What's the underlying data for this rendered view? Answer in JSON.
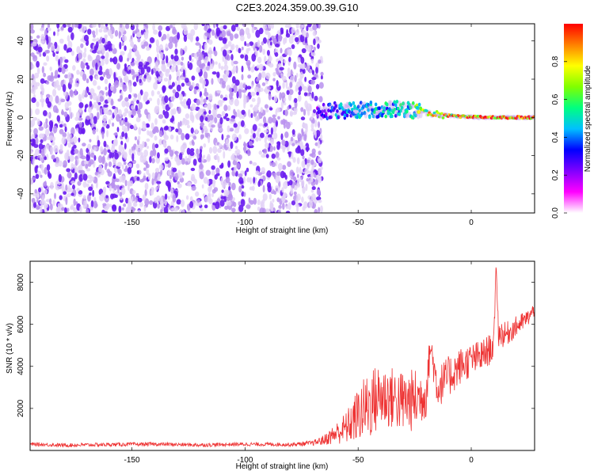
{
  "title": "C2E3.2024.359.00.39.G10",
  "chart_data": [
    {
      "type": "heatmap",
      "title": "C2E3.2024.359.00.39.G10",
      "xlabel": "Height of straight line (km)",
      "ylabel": "Frequency (Hz)",
      "xlim": [
        -195,
        28
      ],
      "ylim": [
        -50,
        49
      ],
      "xticks": [
        -150,
        -100,
        -50,
        0
      ],
      "yticks": [
        -40,
        -20,
        0,
        20,
        40
      ],
      "xtick_labels": [
        "-150",
        "-100",
        "-50",
        "0"
      ],
      "ytick_labels": [
        "-40",
        "-20",
        "0",
        "20",
        "40"
      ],
      "colorbar": {
        "label": "Normalized spectral amplitude",
        "range": [
          0,
          1
        ],
        "ticks": [
          0.0,
          0.2,
          0.4,
          0.6,
          0.8
        ],
        "tick_labels": [
          "0.0",
          "0.2",
          "0.4",
          "0.6",
          "0.8"
        ],
        "colormap": [
          "#ffffff",
          "#ff00ff",
          "#8000ff",
          "#0000ff",
          "#00c0ff",
          "#00ff80",
          "#80ff00",
          "#ffff00",
          "#ff8000",
          "#ff0000"
        ]
      },
      "noise_region": {
        "x_range": [
          -195,
          -68
        ],
        "frequency_range": [
          -50,
          49
        ],
        "amplitude": 0.1
      },
      "signal_track": [
        {
          "x": -68,
          "frequency": 3.0,
          "amplitude": 0.25
        },
        {
          "x": -60,
          "frequency": 3.5,
          "amplitude": 0.4
        },
        {
          "x": -50,
          "frequency": 4.0,
          "amplitude": 0.45
        },
        {
          "x": -40,
          "frequency": 4.0,
          "amplitude": 0.5
        },
        {
          "x": -30,
          "frequency": 4.5,
          "amplitude": 0.5
        },
        {
          "x": -22,
          "frequency": 3.0,
          "amplitude": 0.7
        },
        {
          "x": -15,
          "frequency": 1.5,
          "amplitude": 0.85
        },
        {
          "x": -5,
          "frequency": 0.5,
          "amplitude": 0.9
        },
        {
          "x": 5,
          "frequency": 0.0,
          "amplitude": 0.95
        },
        {
          "x": 15,
          "frequency": 0.0,
          "amplitude": 0.95
        },
        {
          "x": 28,
          "frequency": 0.0,
          "amplitude": 0.95
        }
      ]
    },
    {
      "type": "line",
      "xlabel": "Height of straight line (km)",
      "ylabel": "SNR (10 * v/v)",
      "xlim": [
        -195,
        28
      ],
      "ylim": [
        0,
        9000
      ],
      "xticks": [
        -150,
        -100,
        -50,
        0
      ],
      "yticks": [
        2000,
        4000,
        6000,
        8000
      ],
      "xtick_labels": [
        "-150",
        "-100",
        "-50",
        "0"
      ],
      "ytick_labels": [
        "2000",
        "4000",
        "6000",
        "8000"
      ],
      "series": [
        {
          "name": "SNR",
          "color": "#ee3333",
          "x": [
            -195,
            -180,
            -160,
            -140,
            -120,
            -100,
            -80,
            -70,
            -65,
            -60,
            -55,
            -50,
            -45,
            -40,
            -35,
            -30,
            -25,
            -20,
            -18,
            -15,
            -10,
            -5,
            0,
            5,
            10,
            11,
            12,
            15,
            20,
            25,
            28
          ],
          "values": [
            300,
            250,
            280,
            300,
            260,
            300,
            280,
            350,
            500,
            800,
            1100,
            1700,
            2200,
            2600,
            2500,
            2300,
            2400,
            2700,
            5000,
            3000,
            3500,
            4000,
            4300,
            4500,
            5000,
            9000,
            5600,
            5500,
            5900,
            6300,
            6700
          ],
          "noise": [
            80,
            90,
            90,
            90,
            90,
            90,
            90,
            120,
            250,
            500,
            800,
            1300,
            1700,
            1600,
            1500,
            1500,
            1500,
            1200,
            800,
            1000,
            1000,
            900,
            800,
            800,
            700,
            0,
            700,
            600,
            500,
            400,
            350
          ]
        }
      ]
    }
  ]
}
